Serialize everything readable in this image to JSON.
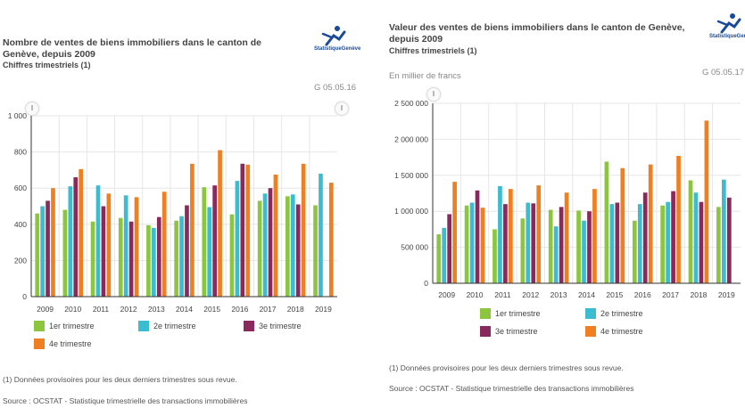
{
  "colors": {
    "q1": "#8cc63e",
    "q2": "#3bbcd0",
    "q3": "#8a2a5c",
    "q4": "#f07f22",
    "grid": "#e6e6e6",
    "axis": "#333333"
  },
  "icons": {
    "handle": "scroll-handle-icon",
    "logo": "statistique-geneve-logo"
  },
  "logo_label": "StatistiqueGenève",
  "legend": [
    "1er trimestre",
    "2e trimestre",
    "3e trimestre",
    "4e trimestre"
  ],
  "chart_data": [
    {
      "type": "bar",
      "title": "Nombre de ventes de biens immobiliers dans le canton de Genève, depuis 2009",
      "subtitle": "Chiffres trimestriels (1)",
      "stamp": "G 05.05.16",
      "unit_label": "",
      "categories": [
        "2009",
        "2010",
        "2011",
        "2012",
        "2013",
        "2014",
        "2015",
        "2016",
        "2017",
        "2018",
        "2019"
      ],
      "yticks": [
        "0",
        "200",
        "400",
        "600",
        "800",
        "1 000"
      ],
      "ylim": [
        0,
        1000
      ],
      "grid": true,
      "legend_position": "bottom",
      "series": [
        {
          "name": "1er trimestre",
          "values": [
            460,
            480,
            415,
            435,
            395,
            420,
            605,
            455,
            530,
            555,
            505
          ]
        },
        {
          "name": "2e trimestre",
          "values": [
            500,
            610,
            615,
            560,
            380,
            445,
            495,
            640,
            570,
            565,
            680
          ]
        },
        {
          "name": "3e trimestre",
          "values": [
            530,
            660,
            500,
            415,
            440,
            505,
            615,
            735,
            600,
            510,
            null
          ]
        },
        {
          "name": "4e trimestre",
          "values": [
            600,
            705,
            570,
            550,
            580,
            735,
            810,
            730,
            675,
            735,
            630
          ]
        }
      ],
      "footnote": "(1) Données provisoires pour les deux derniers trimestres sous revue.",
      "source": "Source : OCSTAT - Statistique trimestrielle des transactions immobilières"
    },
    {
      "type": "bar",
      "title": "Valeur des ventes de biens immobiliers dans le canton de Genève, depuis 2009",
      "subtitle": "Chiffres trimestriels (1)",
      "stamp": "G 05.05.17",
      "unit_label": "En millier de francs",
      "categories": [
        "2009",
        "2010",
        "2011",
        "2012",
        "2013",
        "2014",
        "2015",
        "2016",
        "2017",
        "2018",
        "2019"
      ],
      "yticks": [
        "0",
        "500 000",
        "1 000 000",
        "1 500 000",
        "2 000 000",
        "2 500 000"
      ],
      "ylim": [
        0,
        2500000
      ],
      "grid": true,
      "legend_position": "bottom",
      "series": [
        {
          "name": "1er trimestre",
          "values": [
            680000,
            1080000,
            750000,
            900000,
            1020000,
            1010000,
            1690000,
            870000,
            1080000,
            1430000,
            1060000
          ]
        },
        {
          "name": "2e trimestre",
          "values": [
            770000,
            1120000,
            1350000,
            1120000,
            790000,
            870000,
            1100000,
            1100000,
            1130000,
            1260000,
            1440000
          ]
        },
        {
          "name": "3e trimestre",
          "values": [
            960000,
            1290000,
            1100000,
            1110000,
            1060000,
            1000000,
            1120000,
            1260000,
            1280000,
            1130000,
            1190000
          ]
        },
        {
          "name": "4e trimestre",
          "values": [
            1410000,
            1050000,
            1310000,
            1360000,
            1260000,
            1310000,
            1600000,
            1650000,
            1770000,
            2260000,
            null
          ]
        }
      ],
      "footnote": "(1) Données provisoires pour les deux derniers trimestres sous revue.",
      "source": "Source : OCSTAT - Statistique trimestrielle des transactions immobilières"
    }
  ]
}
